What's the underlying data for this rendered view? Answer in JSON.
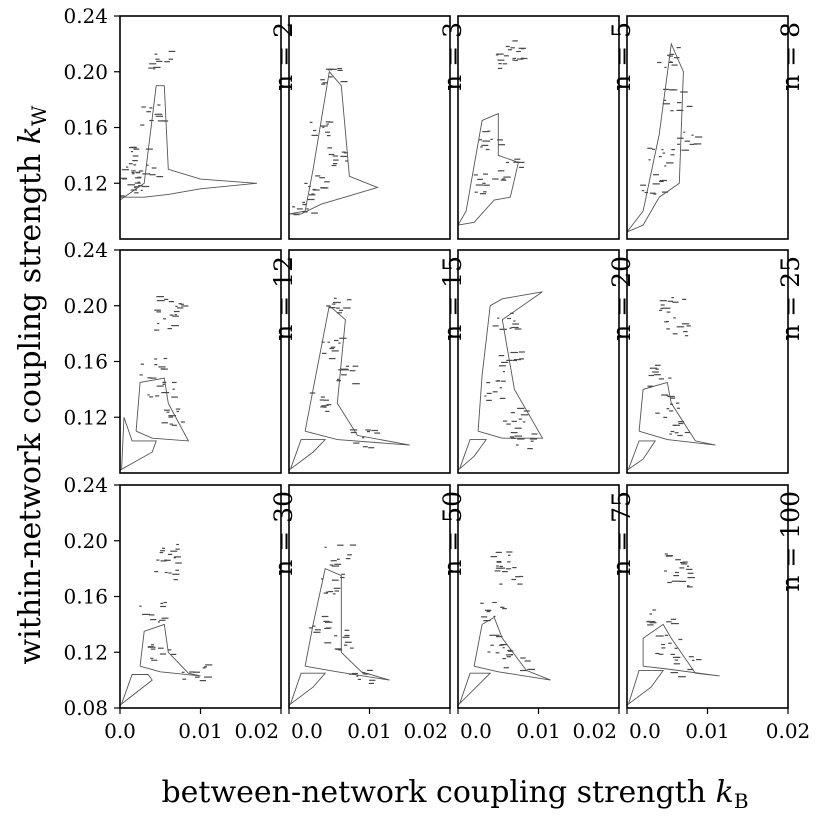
{
  "chart_data": {
    "type": "contour-grid",
    "xlabel": "between-network coupling strength ",
    "xlabel_sym": "k",
    "xlabel_sub": "B",
    "ylabel": "within-network coupling strength ",
    "ylabel_sym": "k",
    "ylabel_sub": "W",
    "xlim": [
      0.0,
      0.02
    ],
    "ylim": [
      0.08,
      0.24
    ],
    "x_ticks": [
      "0.0",
      "0.01",
      "0.02"
    ],
    "x_tick_values": [
      0.0,
      0.01,
      0.02
    ],
    "y_ticks_top": [
      "0.24",
      "0.20",
      "0.16",
      "0.12"
    ],
    "y_ticks_bottom": [
      "0.24",
      "0.20",
      "0.16",
      "0.12",
      "0.08"
    ],
    "y_tick_values": [
      0.24,
      0.2,
      0.16,
      0.12,
      0.08
    ],
    "panels": [
      {
        "label": "n = 2",
        "n": 2,
        "contours": [
          [
            [
              0.0,
              0.108
            ],
            [
              0.003,
              0.12
            ],
            [
              0.0045,
              0.19
            ],
            [
              0.0055,
              0.19
            ],
            [
              0.006,
              0.13
            ],
            [
              0.01,
              0.123
            ],
            [
              0.017,
              0.12
            ],
            [
              0.01,
              0.116
            ],
            [
              0.006,
              0.112
            ],
            [
              0.003,
              0.11
            ],
            [
              0.0,
              0.11
            ]
          ]
        ],
        "specks": [
          [
            0.002,
            0.14
          ],
          [
            0.004,
            0.17
          ],
          [
            0.005,
            0.21
          ],
          [
            0.003,
            0.125
          ],
          [
            0.0008,
            0.13
          ],
          [
            0.0015,
            0.118
          ]
        ]
      },
      {
        "label": "n = 3",
        "n": 3,
        "contours": [
          [
            [
              0.0,
              0.098
            ],
            [
              0.002,
              0.1
            ],
            [
              0.003,
              0.13
            ],
            [
              0.005,
              0.2
            ],
            [
              0.0065,
              0.19
            ],
            [
              0.0075,
              0.125
            ],
            [
              0.011,
              0.117
            ],
            [
              0.0075,
              0.111
            ],
            [
              0.004,
              0.105
            ],
            [
              0.0015,
              0.098
            ],
            [
              0.0,
              0.098
            ]
          ]
        ],
        "specks": [
          [
            0.004,
            0.16
          ],
          [
            0.005,
            0.195
          ],
          [
            0.003,
            0.118
          ],
          [
            0.006,
            0.14
          ],
          [
            0.002,
            0.105
          ]
        ]
      },
      {
        "label": "n = 5",
        "n": 5,
        "contours": [
          [
            [
              0.0,
              0.09
            ],
            [
              0.001,
              0.1
            ],
            [
              0.003,
              0.165
            ],
            [
              0.005,
              0.17
            ],
            [
              0.005,
              0.14
            ],
            [
              0.0075,
              0.135
            ],
            [
              0.0065,
              0.11
            ],
            [
              0.0045,
              0.108
            ],
            [
              0.002,
              0.092
            ],
            [
              0.0,
              0.09
            ]
          ]
        ],
        "specks": [
          [
            0.006,
            0.21
          ],
          [
            0.0065,
            0.215
          ],
          [
            0.004,
            0.15
          ],
          [
            0.003,
            0.12
          ],
          [
            0.006,
            0.13
          ]
        ]
      },
      {
        "label": "n = 8",
        "n": 8,
        "contours": [
          [
            [
              0.0,
              0.085
            ],
            [
              0.002,
              0.1
            ],
            [
              0.004,
              0.155
            ],
            [
              0.0055,
              0.22
            ],
            [
              0.007,
              0.2
            ],
            [
              0.0065,
              0.12
            ],
            [
              0.004,
              0.11
            ],
            [
              0.002,
              0.09
            ],
            [
              0.0,
              0.085
            ]
          ]
        ],
        "specks": [
          [
            0.005,
            0.21
          ],
          [
            0.006,
            0.18
          ],
          [
            0.004,
            0.14
          ],
          [
            0.007,
            0.15
          ],
          [
            0.003,
            0.12
          ]
        ]
      },
      {
        "label": "n = 12",
        "n": 12,
        "contours": [
          [
            [
              0.0,
              0.082
            ],
            [
              0.004,
              0.095
            ],
            [
              0.0045,
              0.103
            ],
            [
              0.0015,
              0.103
            ],
            [
              0.0005,
              0.12
            ],
            [
              0.0002,
              0.083
            ]
          ],
          [
            [
              0.002,
              0.11
            ],
            [
              0.0025,
              0.145
            ],
            [
              0.0055,
              0.148
            ],
            [
              0.006,
              0.13
            ],
            [
              0.0085,
              0.103
            ],
            [
              0.004,
              0.105
            ],
            [
              0.002,
              0.11
            ]
          ]
        ],
        "specks": [
          [
            0.006,
            0.2
          ],
          [
            0.0055,
            0.19
          ],
          [
            0.004,
            0.155
          ],
          [
            0.005,
            0.14
          ],
          [
            0.006,
            0.12
          ]
        ]
      },
      {
        "label": "n = 15",
        "n": 15,
        "contours": [
          [
            [
              0.0,
              0.082
            ],
            [
              0.003,
              0.095
            ],
            [
              0.0045,
              0.104
            ],
            [
              0.0015,
              0.104
            ],
            [
              0.0002,
              0.083
            ]
          ],
          [
            [
              0.002,
              0.11
            ],
            [
              0.003,
              0.14
            ],
            [
              0.005,
              0.2
            ],
            [
              0.007,
              0.19
            ],
            [
              0.006,
              0.13
            ],
            [
              0.0085,
              0.107
            ],
            [
              0.015,
              0.1
            ],
            [
              0.006,
              0.104
            ],
            [
              0.002,
              0.11
            ]
          ]
        ],
        "specks": [
          [
            0.006,
            0.2
          ],
          [
            0.005,
            0.17
          ],
          [
            0.004,
            0.13
          ],
          [
            0.007,
            0.15
          ],
          [
            0.009,
            0.105
          ]
        ]
      },
      {
        "label": "n = 20",
        "n": 20,
        "contours": [
          [
            [
              0.0,
              0.082
            ],
            [
              0.002,
              0.092
            ],
            [
              0.0035,
              0.104
            ],
            [
              0.0015,
              0.104
            ],
            [
              0.0002,
              0.083
            ]
          ],
          [
            [
              0.0025,
              0.11
            ],
            [
              0.003,
              0.15
            ],
            [
              0.004,
              0.2
            ],
            [
              0.0055,
              0.205
            ],
            [
              0.0105,
              0.21
            ],
            [
              0.0055,
              0.19
            ],
            [
              0.007,
              0.14
            ],
            [
              0.0105,
              0.105
            ],
            [
              0.0055,
              0.105
            ],
            [
              0.0025,
              0.11
            ]
          ]
        ],
        "specks": [
          [
            0.0055,
            0.19
          ],
          [
            0.006,
            0.16
          ],
          [
            0.004,
            0.14
          ],
          [
            0.007,
            0.12
          ],
          [
            0.008,
            0.105
          ]
        ]
      },
      {
        "label": "n = 25",
        "n": 25,
        "contours": [
          [
            [
              0.0,
              0.082
            ],
            [
              0.002,
              0.09
            ],
            [
              0.0035,
              0.103
            ],
            [
              0.0015,
              0.103
            ],
            [
              0.0002,
              0.083
            ]
          ],
          [
            [
              0.0015,
              0.11
            ],
            [
              0.002,
              0.14
            ],
            [
              0.005,
              0.145
            ],
            [
              0.0055,
              0.13
            ],
            [
              0.0085,
              0.103
            ],
            [
              0.011,
              0.1
            ],
            [
              0.005,
              0.104
            ],
            [
              0.0015,
              0.11
            ]
          ]
        ],
        "specks": [
          [
            0.0055,
            0.2
          ],
          [
            0.006,
            0.185
          ],
          [
            0.004,
            0.15
          ],
          [
            0.005,
            0.13
          ],
          [
            0.006,
            0.115
          ]
        ]
      },
      {
        "label": "n = 30",
        "n": 30,
        "contours": [
          [
            [
              0.0,
              0.082
            ],
            [
              0.004,
              0.1
            ],
            [
              0.0035,
              0.104
            ],
            [
              0.0015,
              0.104
            ],
            [
              0.0002,
              0.083
            ]
          ],
          [
            [
              0.0025,
              0.11
            ],
            [
              0.003,
              0.135
            ],
            [
              0.0055,
              0.14
            ],
            [
              0.006,
              0.12
            ],
            [
              0.0085,
              0.105
            ],
            [
              0.01,
              0.103
            ],
            [
              0.005,
              0.106
            ],
            [
              0.0025,
              0.11
            ]
          ]
        ],
        "specks": [
          [
            0.006,
            0.19
          ],
          [
            0.0055,
            0.18
          ],
          [
            0.004,
            0.15
          ],
          [
            0.005,
            0.12
          ],
          [
            0.009,
            0.105
          ]
        ]
      },
      {
        "label": "n = 50",
        "n": 50,
        "contours": [
          [
            [
              0.0,
              0.082
            ],
            [
              0.003,
              0.095
            ],
            [
              0.0045,
              0.105
            ],
            [
              0.0015,
              0.105
            ],
            [
              0.0002,
              0.083
            ]
          ],
          [
            [
              0.002,
              0.11
            ],
            [
              0.003,
              0.14
            ],
            [
              0.0045,
              0.18
            ],
            [
              0.0065,
              0.175
            ],
            [
              0.0065,
              0.12
            ],
            [
              0.009,
              0.106
            ],
            [
              0.0125,
              0.1
            ],
            [
              0.006,
              0.106
            ],
            [
              0.002,
              0.11
            ]
          ]
        ],
        "specks": [
          [
            0.006,
            0.19
          ],
          [
            0.005,
            0.17
          ],
          [
            0.004,
            0.14
          ],
          [
            0.006,
            0.13
          ],
          [
            0.009,
            0.105
          ]
        ]
      },
      {
        "label": "n = 75",
        "n": 75,
        "contours": [
          [
            [
              0.0,
              0.082
            ],
            [
              0.004,
              0.105
            ],
            [
              0.0015,
              0.105
            ],
            [
              0.0002,
              0.083
            ]
          ],
          [
            [
              0.002,
              0.11
            ],
            [
              0.003,
              0.14
            ],
            [
              0.0045,
              0.145
            ],
            [
              0.0055,
              0.13
            ],
            [
              0.0085,
              0.107
            ],
            [
              0.0115,
              0.1
            ],
            [
              0.005,
              0.106
            ],
            [
              0.002,
              0.11
            ]
          ]
        ],
        "specks": [
          [
            0.0055,
            0.185
          ],
          [
            0.006,
            0.175
          ],
          [
            0.004,
            0.15
          ],
          [
            0.005,
            0.125
          ],
          [
            0.007,
            0.115
          ]
        ]
      },
      {
        "label": "n = 100",
        "n": 100,
        "contours": [
          [
            [
              0.0,
              0.082
            ],
            [
              0.003,
              0.095
            ],
            [
              0.0045,
              0.107
            ],
            [
              0.0015,
              0.107
            ],
            [
              0.0002,
              0.083
            ]
          ],
          [
            [
              0.002,
              0.11
            ],
            [
              0.002,
              0.13
            ],
            [
              0.0045,
              0.14
            ],
            [
              0.0055,
              0.13
            ],
            [
              0.0085,
              0.105
            ],
            [
              0.0115,
              0.103
            ],
            [
              0.005,
              0.108
            ],
            [
              0.002,
              0.11
            ]
          ]
        ],
        "specks": [
          [
            0.006,
            0.185
          ],
          [
            0.0065,
            0.175
          ],
          [
            0.004,
            0.145
          ],
          [
            0.005,
            0.125
          ],
          [
            0.007,
            0.11
          ]
        ]
      }
    ]
  }
}
